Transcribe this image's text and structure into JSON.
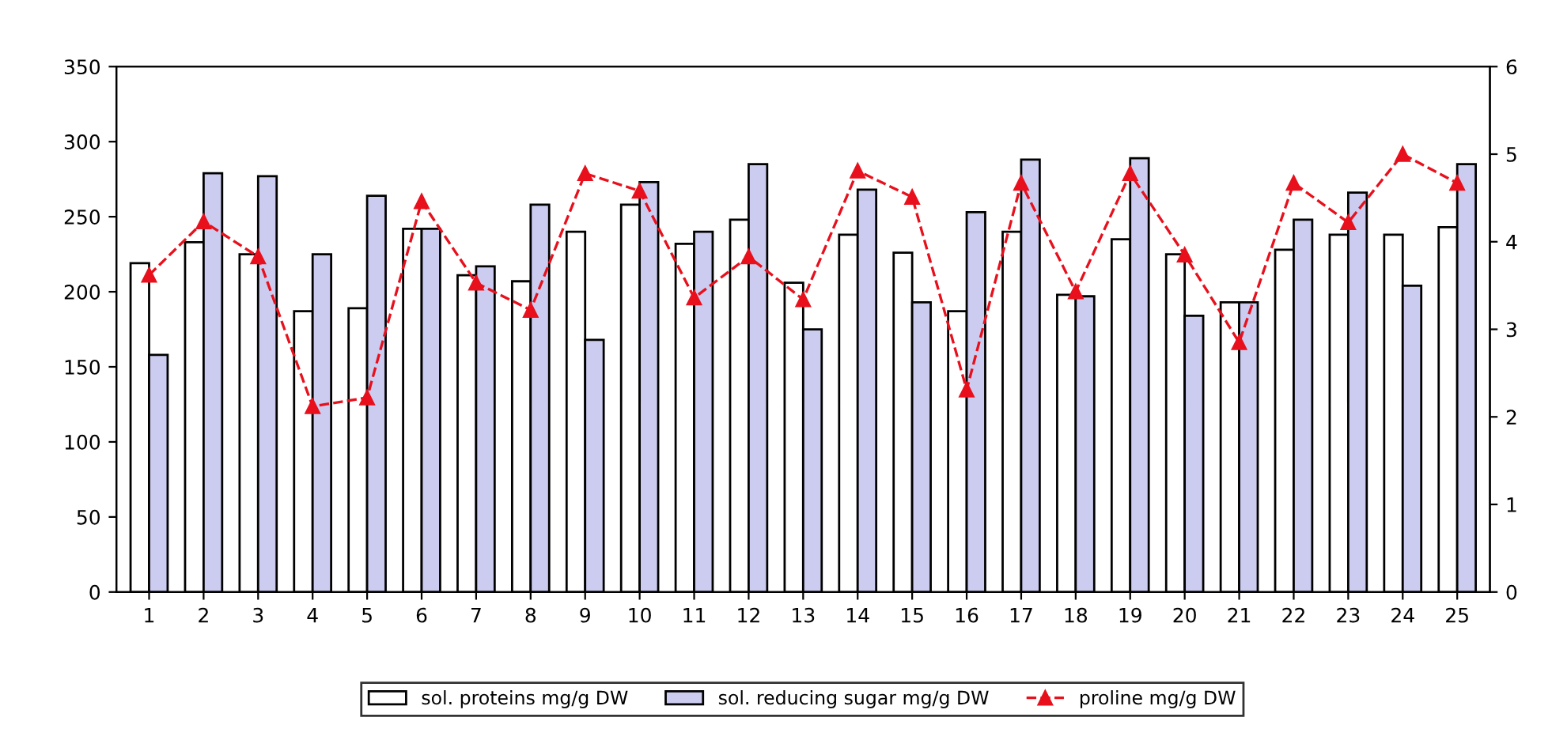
{
  "chart_data": {
    "type": "bar",
    "categories": [
      "1",
      "2",
      "3",
      "4",
      "5",
      "6",
      "7",
      "8",
      "9",
      "10",
      "11",
      "12",
      "13",
      "14",
      "15",
      "16",
      "17",
      "18",
      "19",
      "20",
      "21",
      "22",
      "23",
      "24",
      "25"
    ],
    "series": [
      {
        "name": "sol. proteins mg/g DW",
        "color": "#ffffff",
        "values": [
          219,
          233,
          225,
          187,
          189,
          242,
          211,
          207,
          240,
          258,
          232,
          248,
          206,
          238,
          226,
          187,
          240,
          198,
          235,
          225,
          193,
          228,
          238,
          238,
          243
        ]
      },
      {
        "name": "sol. reducing sugar mg/g DW",
        "color": "#ccccf0",
        "values": [
          158,
          279,
          277,
          225,
          264,
          242,
          217,
          258,
          168,
          273,
          240,
          285,
          175,
          268,
          193,
          253,
          288,
          197,
          289,
          184,
          193,
          248,
          266,
          204,
          285
        ]
      },
      {
        "name": "proline mg/g DW",
        "type": "line",
        "axis": "y2",
        "color": "#e8101c",
        "marker": "triangle",
        "line_style": "dashed",
        "values": [
          3.62,
          4.23,
          3.83,
          2.12,
          2.22,
          4.46,
          3.53,
          3.22,
          4.78,
          4.58,
          3.36,
          3.83,
          3.34,
          4.81,
          4.51,
          2.31,
          4.67,
          3.43,
          4.78,
          3.85,
          2.85,
          4.67,
          4.22,
          5.0,
          4.67
        ]
      }
    ],
    "ylim": [
      0,
      350
    ],
    "yticks": [
      0,
      50,
      100,
      150,
      200,
      250,
      300,
      350
    ],
    "y2lim": [
      0,
      6
    ],
    "y2ticks": [
      0,
      1,
      2,
      3,
      4,
      5,
      6
    ],
    "grid": false,
    "legend": "bottom"
  }
}
